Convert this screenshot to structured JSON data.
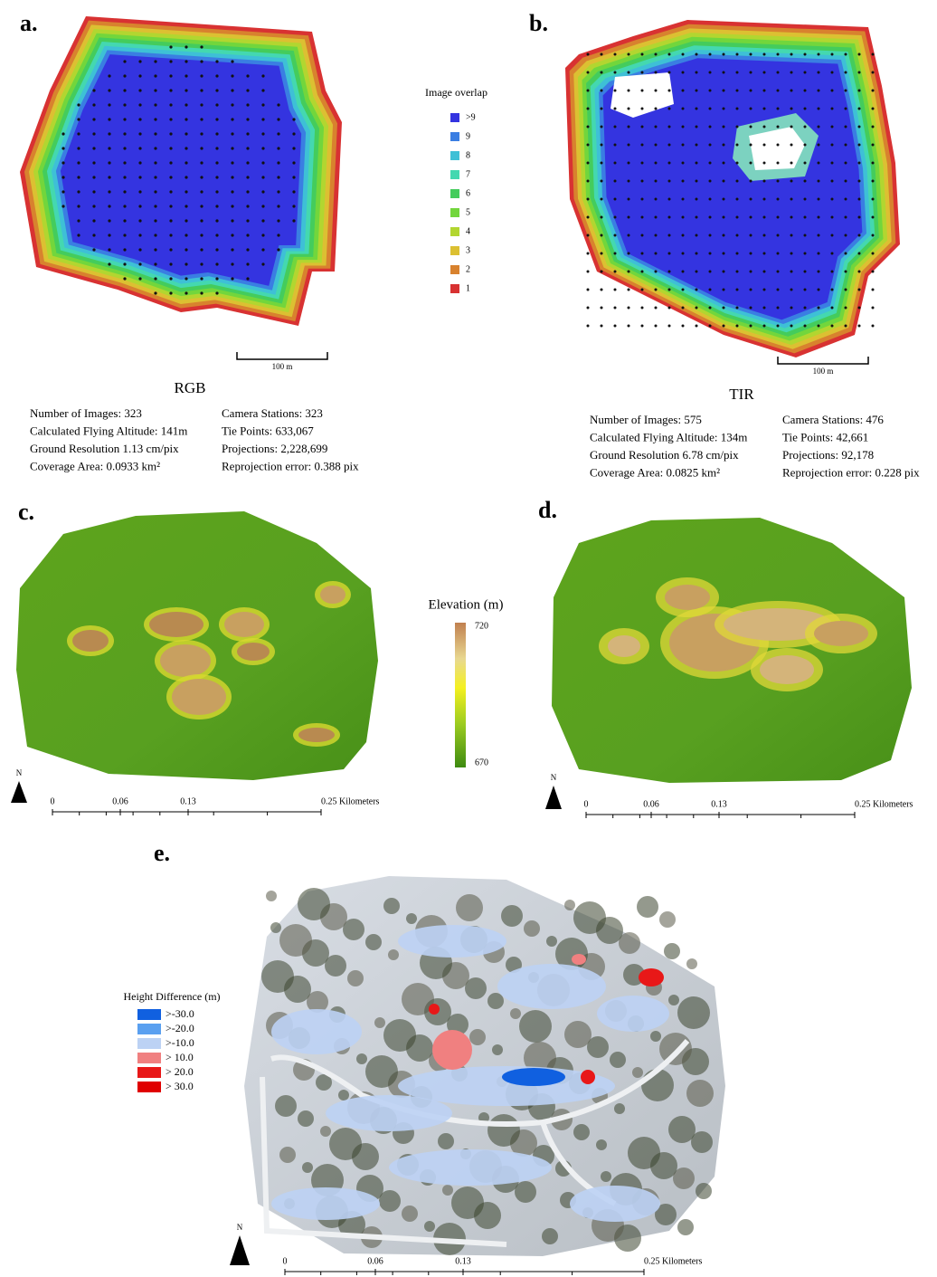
{
  "panel_a": {
    "label": "a.",
    "title": "RGB",
    "scale_bar": "100 m",
    "stats_left": [
      "Number of Images: 323",
      "Calculated Flying Altitude: 141m",
      "Ground Resolution 1.13 cm/pix",
      "Coverage Area: 0.0933 km²"
    ],
    "stats_right": [
      "Camera Stations: 323",
      "Tie Points: 633,067",
      "Projections: 2,228,699",
      "Reprojection error: 0.388 pix"
    ]
  },
  "overlap_legend": {
    "title": "Image overlap",
    "items": [
      {
        "label": ">9",
        "color": "#3434e0"
      },
      {
        "label": "9",
        "color": "#3a7ee2"
      },
      {
        "label": "8",
        "color": "#3ec0d6"
      },
      {
        "label": "7",
        "color": "#44d8b0"
      },
      {
        "label": "6",
        "color": "#44cc5c"
      },
      {
        "label": "5",
        "color": "#72d63c"
      },
      {
        "label": "4",
        "color": "#b2d630"
      },
      {
        "label": "3",
        "color": "#dcc032"
      },
      {
        "label": "2",
        "color": "#d8822e"
      },
      {
        "label": "1",
        "color": "#d83232"
      }
    ]
  },
  "panel_b": {
    "label": "b.",
    "title": "TIR",
    "scale_bar": "100 m",
    "stats_left": [
      "Number of Images: 575",
      "Calculated Flying Altitude: 134m",
      "Ground Resolution 6.78 cm/pix",
      "Coverage Area: 0.0825 km²"
    ],
    "stats_right": [
      "Camera Stations: 476",
      "Tie Points: 42,661",
      "Projections: 92,178",
      "Reprojection error: 0.228 pix"
    ]
  },
  "panel_c": {
    "label": "c.",
    "north": "N",
    "scale_labels": [
      "0",
      "0.06",
      "0.13",
      "0.25 Kilometers"
    ]
  },
  "elevation_legend": {
    "title": "Elevation (m)",
    "max": "720",
    "min": "670"
  },
  "panel_d": {
    "label": "d.",
    "north": "N",
    "scale_labels": [
      "0",
      "0.06",
      "0.13",
      "0.25 Kilometers"
    ]
  },
  "panel_e": {
    "label": "e.",
    "north": "N",
    "scale_labels": [
      "0",
      "0.06",
      "0.13",
      "0.25 Kilometers"
    ]
  },
  "height_legend": {
    "title": "Height Difference (m)",
    "items": [
      {
        "label": ">-30.0",
        "color": "#1060e0"
      },
      {
        "label": ">-20.0",
        "color": "#5aa0f0"
      },
      {
        "label": ">-10.0",
        "color": "#bcd2f4"
      },
      {
        "label": "> 10.0",
        "color": "#f08080"
      },
      {
        "label": "> 20.0",
        "color": "#e81818"
      },
      {
        "label": "> 30.0",
        "color": "#e00000"
      }
    ]
  }
}
